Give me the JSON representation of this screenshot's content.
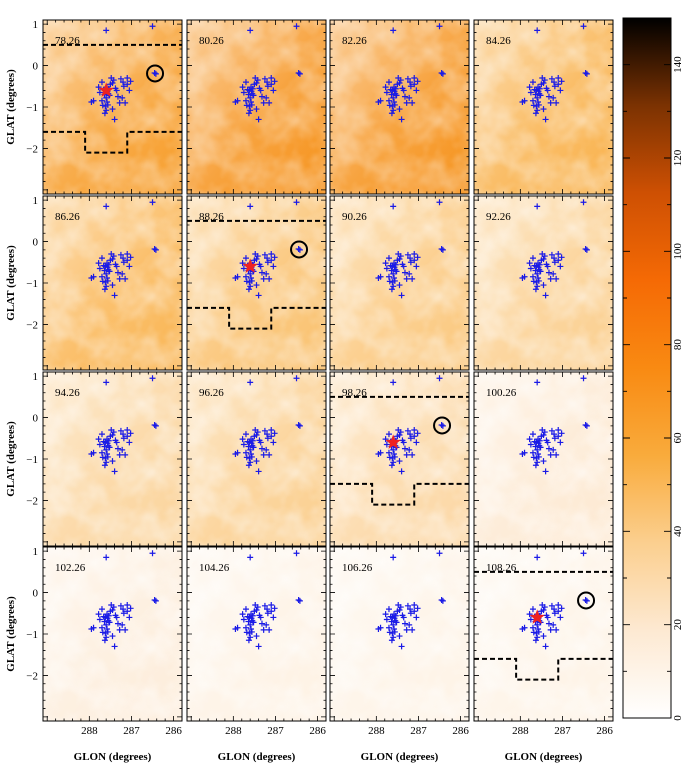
{
  "chart_data": {
    "type": "heatmap",
    "description_kind": "channel-map grid",
    "panel_labels": [
      "78.26",
      "80.26",
      "82.26",
      "84.26",
      "86.26",
      "88.26",
      "90.26",
      "92.26",
      "94.26",
      "96.26",
      "98.26",
      "100.26",
      "102.26",
      "104.26",
      "106.26",
      "108.26"
    ],
    "panel_intensity": [
      0.85,
      0.92,
      0.92,
      0.7,
      0.68,
      0.6,
      0.55,
      0.5,
      0.45,
      0.5,
      0.42,
      0.25,
      0.2,
      0.15,
      0.14,
      0.14
    ],
    "panels_with_markers": [
      0,
      5,
      10,
      15
    ],
    "xlabel": "GLON (degrees)",
    "ylabel": "GLAT (degrees)",
    "x_ticks": [
      "288",
      "287",
      "286"
    ],
    "y_ticks": [
      "1",
      "0",
      "−1",
      "−2"
    ],
    "xlim": [
      289.1,
      285.8
    ],
    "ylim": [
      -3.1,
      1.1
    ],
    "colorbar": {
      "min": 0,
      "max": 150,
      "ticks": [
        "0",
        "20",
        "40",
        "60",
        "80",
        "100",
        "120",
        "140"
      ],
      "colors": [
        "#ffffff",
        "#fde9d2",
        "#fbcf8f",
        "#f9ab3c",
        "#f98a12",
        "#f56a05",
        "#ce5003",
        "#7b3202",
        "#000000"
      ]
    },
    "sources_glon_glat": [
      [
        287.58,
        -0.52
      ],
      [
        287.62,
        -0.6
      ],
      [
        287.55,
        -0.68
      ],
      [
        287.6,
        -0.78
      ],
      [
        287.66,
        -0.58
      ],
      [
        287.5,
        -0.45
      ],
      [
        287.54,
        -0.56
      ],
      [
        287.57,
        -0.62
      ],
      [
        287.52,
        -0.72
      ],
      [
        287.64,
        -0.7
      ],
      [
        287.58,
        -0.88
      ],
      [
        287.62,
        -0.98
      ],
      [
        287.6,
        -1.08
      ],
      [
        287.68,
        -0.96
      ],
      [
        287.56,
        -0.95
      ],
      [
        287.63,
        -1.15
      ],
      [
        287.7,
        -0.85
      ],
      [
        287.75,
        -0.65
      ],
      [
        287.78,
        -0.52
      ],
      [
        287.45,
        -0.42
      ],
      [
        287.42,
        -0.35
      ],
      [
        287.38,
        -0.55
      ],
      [
        287.48,
        -0.3
      ],
      [
        287.25,
        -0.32
      ],
      [
        287.2,
        -0.4
      ],
      [
        287.18,
        -0.5
      ],
      [
        287.1,
        -0.45
      ],
      [
        287.02,
        -0.38
      ],
      [
        287.05,
        -0.6
      ],
      [
        287.22,
        -0.78
      ],
      [
        287.32,
        -0.75
      ],
      [
        287.28,
        -0.9
      ],
      [
        287.45,
        -1.05
      ],
      [
        287.4,
        -1.3
      ],
      [
        287.15,
        -0.9
      ],
      [
        287.1,
        -0.3
      ],
      [
        287.95,
        -0.88
      ],
      [
        287.9,
        -0.85
      ],
      [
        286.45,
        -0.18
      ],
      [
        286.42,
        -0.2
      ],
      [
        286.5,
        0.95
      ],
      [
        287.6,
        0.85
      ],
      [
        287.7,
        -0.4
      ],
      [
        287.35,
        -0.6
      ]
    ],
    "red_star_glon_glat": [
      287.6,
      -0.6
    ],
    "circle_glon_glat": [
      286.44,
      -0.19
    ],
    "dashed_boundary": {
      "top_glat": 0.5,
      "bottom_glat": -1.6,
      "step_glon": [
        288.1,
        287.1
      ],
      "step_glat": -2.1
    }
  }
}
